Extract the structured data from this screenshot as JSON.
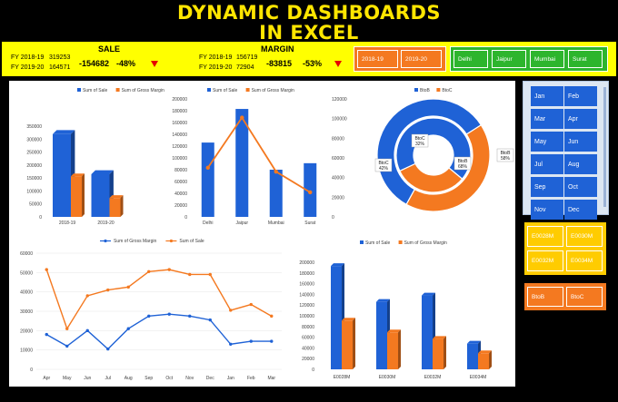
{
  "title": {
    "line1": "DYNAMIC DASHBOARDS",
    "line2": "IN EXCEL"
  },
  "kpi": {
    "sale": {
      "label": "SALE",
      "row1": "FY 2018-19",
      "row1_val": "319253",
      "row2": "FY 2019-20",
      "row2_val": "164571",
      "diff": "-154682",
      "pct": "-48%"
    },
    "margin": {
      "label": "MARGIN",
      "row1": "FY 2018-19",
      "row1_val": "156719",
      "row2": "FY 2019-20",
      "row2_val": "72904",
      "diff": "-83815",
      "pct": "-53%"
    }
  },
  "slicers": {
    "years": [
      "2018-19",
      "2019-20"
    ],
    "cities": [
      "Delhi",
      "Jaipur",
      "Mumbai",
      "Surat"
    ],
    "months": [
      "Jan",
      "Feb",
      "Mar",
      "Apr",
      "May",
      "Jun",
      "Jul",
      "Aug",
      "Sep",
      "Oct",
      "Nov",
      "Dec"
    ],
    "employees": [
      "E0028M",
      "E0030M",
      "E0032M",
      "E0034M"
    ],
    "channels": [
      "BtoB",
      "BtoC"
    ]
  },
  "colors": {
    "blue": "#1f62d6",
    "orange": "#f47920",
    "yellow": "#ffff00",
    "green": "#2db52d",
    "title": "#ffe600"
  },
  "chart_data": [
    {
      "type": "bar",
      "legend": [
        "Sum of Sale",
        "Sum of Gross Margin"
      ],
      "categories": [
        "2018-19",
        "2019-20"
      ],
      "series": [
        {
          "name": "Sum of Sale",
          "values": [
            319253,
            164571
          ]
        },
        {
          "name": "Sum of Gross Margin",
          "values": [
            156719,
            72904
          ]
        }
      ],
      "ylim": [
        0,
        350000
      ],
      "yticks": [
        "0",
        "50000",
        "100000",
        "150000",
        "200000",
        "250000",
        "300000",
        "350000"
      ]
    },
    {
      "type": "bar+line",
      "legend": [
        "Sum of Sale",
        "Sum of Gross Margin"
      ],
      "categories": [
        "Delhi",
        "Jaipur",
        "Mumbai",
        "Surat"
      ],
      "series": [
        {
          "name": "Sum of Sale",
          "values": [
            126000,
            183000,
            80000,
            91000
          ]
        },
        {
          "name": "Sum of Gross Margin",
          "values": [
            50000,
            101000,
            46000,
            25000
          ]
        }
      ],
      "ylim_left": [
        0,
        200000
      ],
      "yticks_left": [
        "0",
        "20000",
        "40000",
        "60000",
        "80000",
        "100000",
        "120000",
        "140000",
        "160000",
        "180000",
        "200000"
      ],
      "ylim_right": [
        0,
        120000
      ],
      "yticks_right": [
        "0",
        "20000",
        "40000",
        "60000",
        "80000",
        "100000",
        "120000"
      ]
    },
    {
      "type": "doughnut",
      "legend": [
        "BtoB",
        "BtoC"
      ],
      "rings": [
        {
          "values": [
            58,
            42
          ],
          "labels": [
            "BtoB\n58%",
            "BtoC\n42%"
          ]
        },
        {
          "values": [
            68,
            32
          ],
          "labels": [
            "BtoB\n68%",
            "BtoC\n32%"
          ]
        }
      ]
    },
    {
      "type": "line",
      "legend": [
        "Sum of Gross Margin",
        "Sum of Sale"
      ],
      "categories": [
        "Apr",
        "May",
        "Jun",
        "Jul",
        "Aug",
        "Sep",
        "Oct",
        "Nov",
        "Dec",
        "Jan",
        "Feb",
        "Mar"
      ],
      "series": [
        {
          "name": "Sum of Gross Margin",
          "values": [
            18000,
            12000,
            20000,
            10500,
            21000,
            27500,
            28500,
            27500,
            25500,
            13000,
            14500,
            14500
          ]
        },
        {
          "name": "Sum of Sale",
          "values": [
            51500,
            21000,
            38000,
            41000,
            42500,
            50500,
            51500,
            49000,
            49000,
            30500,
            33500,
            27500
          ]
        }
      ],
      "ylim": [
        0,
        60000
      ],
      "yticks": [
        "0",
        "10000",
        "20000",
        "30000",
        "40000",
        "50000",
        "60000"
      ]
    },
    {
      "type": "bar",
      "legend": [
        "Sum of Sale",
        "Sum of Gross Margin"
      ],
      "categories": [
        "E0028M",
        "E0030M",
        "E0032M",
        "E0034M"
      ],
      "series": [
        {
          "name": "Sum of Sale",
          "values": [
            193000,
            126000,
            138000,
            48000
          ]
        },
        {
          "name": "Sum of Gross Margin",
          "values": [
            91000,
            69000,
            57000,
            30000
          ]
        }
      ],
      "ylim": [
        0,
        200000
      ],
      "yticks": [
        "0",
        "20000",
        "40000",
        "60000",
        "80000",
        "100000",
        "120000",
        "140000",
        "160000",
        "180000",
        "200000"
      ]
    }
  ]
}
